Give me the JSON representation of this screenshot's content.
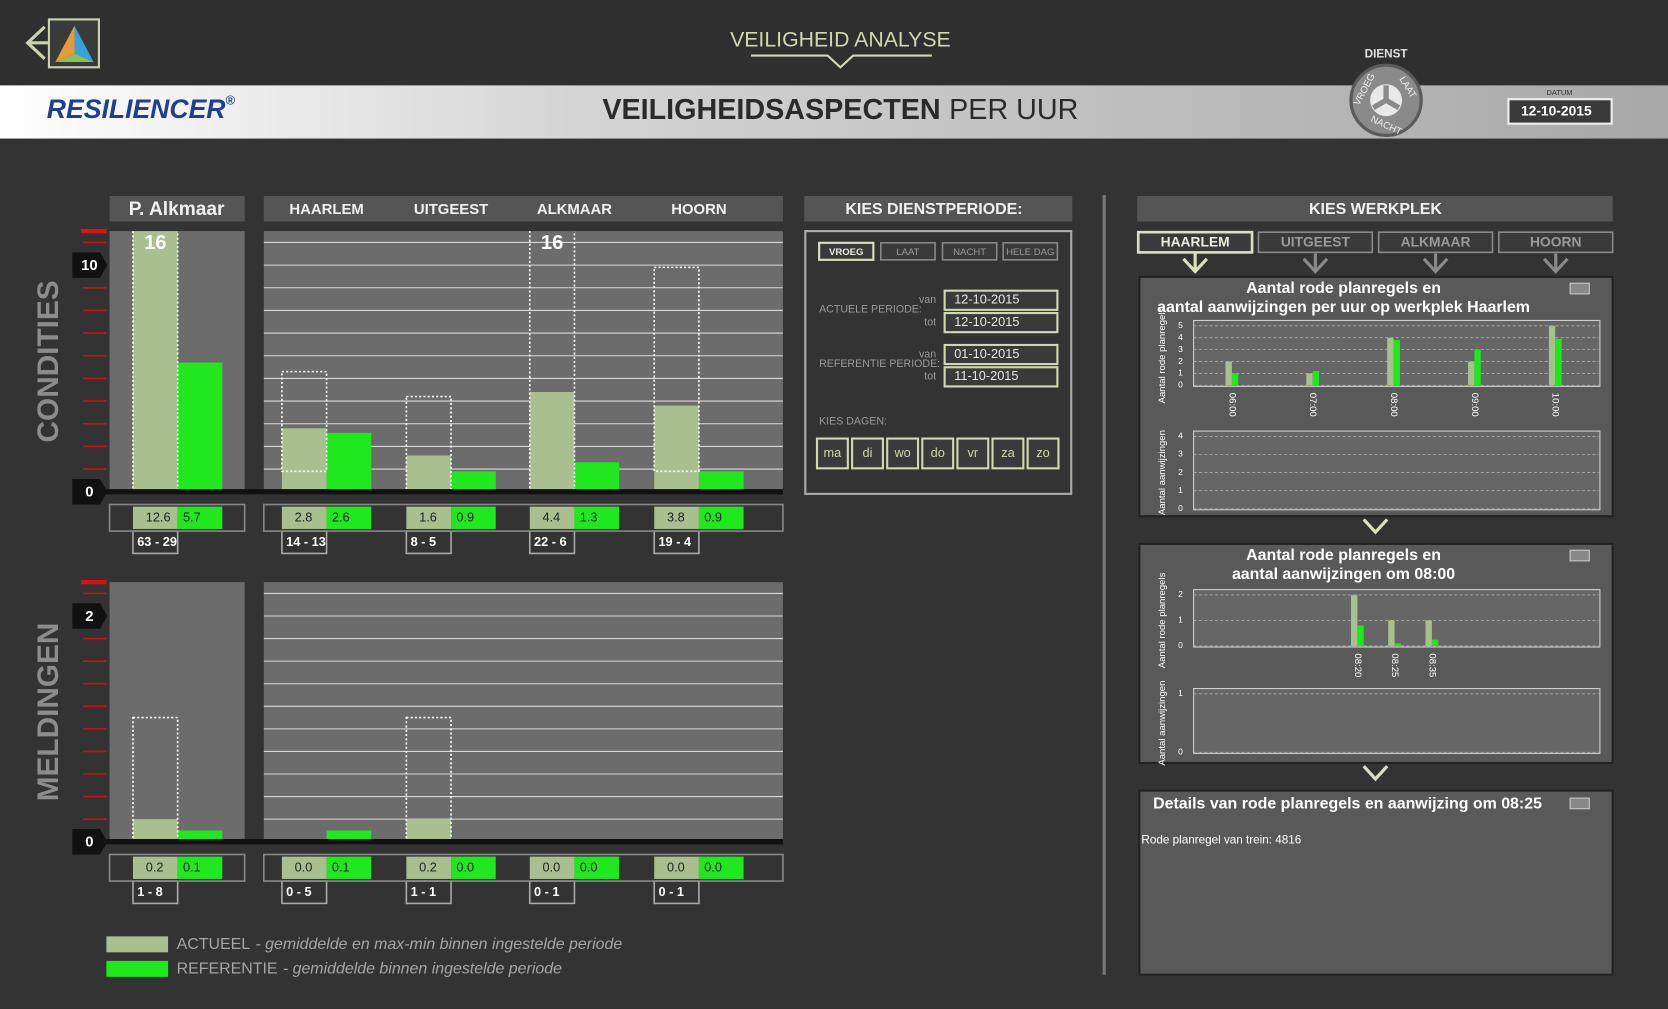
{
  "header": {
    "title": "VEILIGHEID ANALYSE",
    "logo": "RESILIENCER",
    "logo_mark": "®",
    "page_title_bold": "VEILIGHEIDSASPECTEN",
    "page_title_rest": "PER UUR",
    "dienst": {
      "label": "DIENST",
      "options": [
        "VROEG",
        "LAAT",
        "NACHT"
      ]
    },
    "datum": {
      "label": "DATUM",
      "value": "12-10-2015"
    }
  },
  "overview": {
    "locations": [
      "P. Alkmaar",
      "HAARLEM",
      "UITGEEST",
      "ALKMAAR",
      "HOORN"
    ],
    "actual_color": "#a9bf8f",
    "reference_color": "#1fe81f",
    "charts": [
      {
        "label": "CONDITIES",
        "ylim": [
          0,
          11.5
        ],
        "yticks": [
          0,
          10
        ],
        "grid_step": 1,
        "actual": [
          12.6,
          2.8,
          1.6,
          4.4,
          3.8
        ],
        "reference": [
          5.7,
          2.6,
          0.9,
          1.3,
          0.9
        ],
        "range_high": [
          16,
          5.3,
          4.2,
          16,
          9.9
        ],
        "range_low": [
          0,
          0.9,
          0,
          0,
          0.9
        ],
        "range_labels": [
          "63 - 29",
          "14 - 13",
          "8 - 5",
          "22 - 6",
          "19 - 4"
        ]
      },
      {
        "label": "MELDINGEN",
        "ylim": [
          0,
          2.3
        ],
        "yticks": [
          0,
          2
        ],
        "grid_step": 0.2,
        "actual": [
          0.2,
          0,
          0.2,
          0,
          0
        ],
        "actual_labels": [
          "0.2",
          "0.0",
          "0.2",
          "0.0",
          "0.0"
        ],
        "reference": [
          0.1,
          0.1,
          0,
          0,
          0
        ],
        "reference_labels": [
          "0.1",
          "0.1",
          "0.0",
          "0.0",
          "0.0"
        ],
        "range_high": [
          1.1,
          null,
          1.1,
          null,
          null
        ],
        "range_low": [
          0,
          null,
          0,
          null,
          null
        ],
        "range_labels": [
          "1 - 8",
          "0 - 5",
          "1 - 1",
          "0 - 1",
          "0 - 1"
        ]
      }
    ],
    "legend": [
      {
        "name": "ACTUEEL",
        "description": "- gemiddelde en max-min binnen ingestelde periode"
      },
      {
        "name": "REFERENTIE",
        "description": "- gemiddelde binnen ingestelde periode"
      }
    ]
  },
  "dienstperiode": {
    "title": "KIES DIENSTPERIODE:",
    "buttons": [
      "VROEG",
      "LAAT",
      "NACHT",
      "HELE DAG"
    ],
    "selected": 0,
    "periods": [
      {
        "label": "ACTUELE PERIODE:",
        "van_label": "van",
        "van": "12-10-2015",
        "tot_label": "tot",
        "tot": "12-10-2015"
      },
      {
        "label": "REFERENTIE PERIODE:",
        "van_label": "van",
        "van": "01-10-2015",
        "tot_label": "tot",
        "tot": "11-10-2015"
      }
    ],
    "days_label": "KIES DAGEN:",
    "days": [
      "ma",
      "di",
      "wo",
      "do",
      "vr",
      "za",
      "zo"
    ]
  },
  "werkplek": {
    "title": "KIES WERKPLEK",
    "tabs": [
      "HAARLEM",
      "UITGEEST",
      "ALKMAAR",
      "HOORN"
    ],
    "selected": 0,
    "panels": [
      {
        "title_lines": [
          "Aantal rode planregels en",
          "aantal aanwijzingen per uur op werkplek Haarlem"
        ],
        "charts": [
          {
            "type": "bar",
            "ylabel": "Aantal rode planregels",
            "ylim": [
              0,
              5
            ],
            "yticks": [
              0,
              1,
              2,
              3,
              4,
              5
            ],
            "categories": [
              "06:00",
              "07:00",
              "08:00",
              "09:00",
              "10:00"
            ],
            "series": [
              {
                "color": "#a9bf8f",
                "values": [
                  2,
                  1,
                  4,
                  2,
                  5
                ]
              },
              {
                "color": "#1fe81f",
                "values": [
                  1,
                  1.2,
                  3.8,
                  3,
                  3.9
                ]
              }
            ]
          },
          {
            "type": "bar",
            "ylabel": "Aantal aanwijzingen",
            "ylim": [
              0,
              4
            ],
            "yticks": [
              0,
              1,
              2,
              3,
              4
            ]
          }
        ]
      },
      {
        "title_lines": [
          "Aantal rode planregels en",
          "aantal aanwijzingen om 08:00"
        ],
        "charts": [
          {
            "type": "bar",
            "ylabel": "Aantal rode planregels",
            "ylim": [
              0,
              2
            ],
            "yticks": [
              0,
              1,
              2
            ],
            "categories": [
              "08:20",
              "08:25",
              "08:35"
            ],
            "series": [
              {
                "color": "#a9bf8f",
                "values": [
                  2,
                  1,
                  1
                ]
              },
              {
                "color": "#1fe81f",
                "values": [
                  0.8,
                  0.1,
                  0.25
                ]
              }
            ]
          },
          {
            "type": "bar",
            "ylabel": "Aantal aanwijzingen",
            "ylim": [
              0,
              1
            ],
            "yticks": [
              0,
              1
            ]
          }
        ]
      }
    ],
    "details": {
      "title": "Details van rode planregels en aanwijzing om 08:25",
      "text": "Rode planregel van trein: 4816"
    }
  }
}
